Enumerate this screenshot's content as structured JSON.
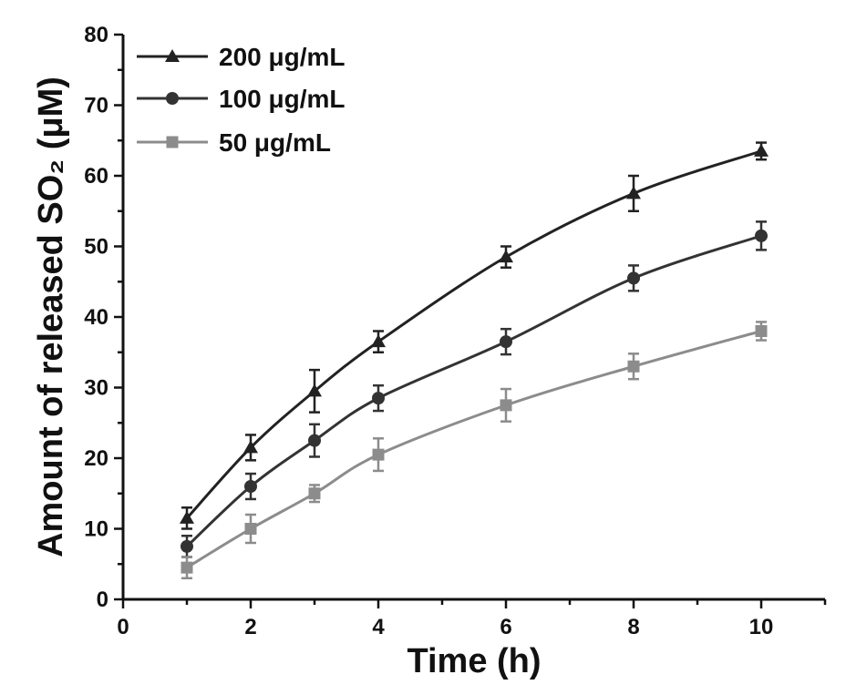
{
  "chart_data": {
    "type": "line",
    "xlabel": "Time (h)",
    "ylabel": "Amount of released SO₂ (μM)",
    "xlim": [
      0,
      11
    ],
    "ylim": [
      0,
      80
    ],
    "xticks": [
      "0",
      "2",
      "4",
      "6",
      "8",
      "10"
    ],
    "yticks": [
      "0",
      "10",
      "20",
      "30",
      "40",
      "50",
      "60",
      "70",
      "80"
    ],
    "grid": false,
    "legend_position": "top-left",
    "x": [
      1,
      2,
      3,
      4,
      6,
      8,
      10
    ],
    "series": [
      {
        "name": "200 μg/mL",
        "marker": "triangle",
        "color": "#222222",
        "values": [
          11.5,
          21.5,
          29.5,
          36.5,
          48.5,
          57.5,
          63.5
        ],
        "errors": [
          1.5,
          1.8,
          3.0,
          1.5,
          1.5,
          2.5,
          1.2
        ]
      },
      {
        "name": "100 μg/mL",
        "marker": "circle",
        "color": "#333333",
        "values": [
          7.5,
          16.0,
          22.5,
          28.5,
          36.5,
          45.5,
          51.5
        ],
        "errors": [
          1.5,
          1.8,
          2.3,
          1.8,
          1.8,
          1.8,
          2.0
        ]
      },
      {
        "name": "50 μg/mL",
        "marker": "square",
        "color": "#8c8c8c",
        "values": [
          4.5,
          10.0,
          15.0,
          20.5,
          27.5,
          33.0,
          38.0
        ],
        "errors": [
          1.5,
          2.0,
          1.2,
          2.3,
          2.3,
          1.8,
          1.3
        ]
      }
    ]
  }
}
